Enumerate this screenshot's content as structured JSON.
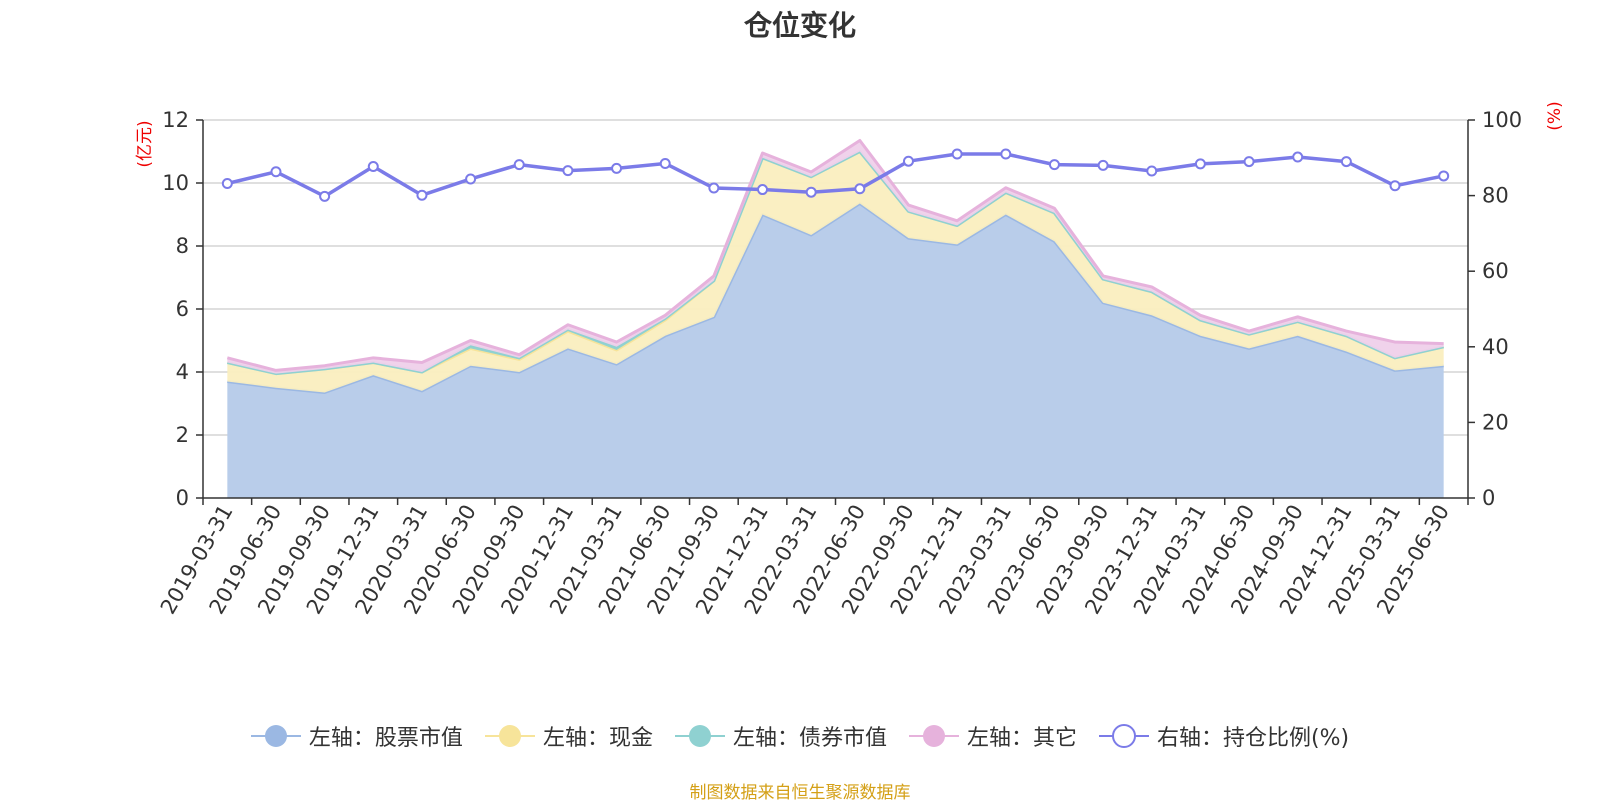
{
  "title": "仓位变化",
  "source_text": "制图数据来自恒生聚源数据库",
  "colors": {
    "title": "#333333",
    "source": "#d4a017",
    "unit": "#ee0000",
    "grid": "#cccccc",
    "axis": "#333333",
    "stock": "#9bb8e3",
    "stock_fill": "#b9cdea",
    "cash": "#f7e49a",
    "cash_fill": "#faeebf",
    "bond": "#8fd1d1",
    "other": "#e6b2dc",
    "other_fill": "#efd0ea",
    "ratio": "#7b7be8"
  },
  "chart_data": {
    "type": "area",
    "title": "仓位变化",
    "left_axis": {
      "unit": "(亿元)",
      "ylim": [
        0,
        12
      ],
      "ticks": [
        0,
        2,
        4,
        6,
        8,
        10,
        12
      ]
    },
    "right_axis": {
      "unit": "(%)",
      "ylim": [
        0,
        100
      ],
      "ticks": [
        0,
        20,
        40,
        60,
        80,
        100
      ]
    },
    "grid": true,
    "legend_position": "bottom",
    "x": [
      "2019-03-31",
      "2019-06-30",
      "2019-09-30",
      "2019-12-31",
      "2020-03-31",
      "2020-06-30",
      "2020-09-30",
      "2020-12-31",
      "2021-03-31",
      "2021-06-30",
      "2021-09-30",
      "2021-12-31",
      "2022-03-31",
      "2022-06-30",
      "2022-09-30",
      "2022-12-31",
      "2023-03-31",
      "2023-06-30",
      "2023-09-30",
      "2023-12-31",
      "2024-03-31",
      "2024-06-30",
      "2024-09-30",
      "2024-12-31",
      "2025-03-31",
      "2025-06-30"
    ],
    "series": [
      {
        "name": "左轴：股票市值",
        "axis": "left",
        "type": "area",
        "values": [
          3.7,
          3.5,
          3.35,
          3.9,
          3.4,
          4.2,
          4.0,
          4.75,
          4.25,
          5.15,
          5.75,
          9.0,
          8.35,
          9.35,
          8.25,
          8.05,
          9.0,
          8.15,
          6.2,
          5.8,
          5.15,
          4.75,
          5.15,
          4.65,
          4.05,
          4.2
        ]
      },
      {
        "name": "左轴：现金",
        "axis": "left",
        "type": "area",
        "values": [
          0.6,
          0.45,
          0.75,
          0.4,
          0.6,
          0.55,
          0.4,
          0.55,
          0.45,
          0.5,
          1.15,
          1.8,
          1.85,
          1.65,
          0.85,
          0.6,
          0.7,
          0.9,
          0.75,
          0.75,
          0.5,
          0.45,
          0.45,
          0.5,
          0.4,
          0.6
        ]
      },
      {
        "name": "左轴：债券市值",
        "axis": "left",
        "type": "area",
        "values": [
          0,
          0,
          0,
          0,
          0,
          0.1,
          0.05,
          0.05,
          0.1,
          0.05,
          0,
          0,
          0,
          0,
          0,
          0,
          0,
          0,
          0,
          0,
          0,
          0,
          0,
          0,
          0,
          0
        ]
      },
      {
        "name": "左轴：其它",
        "axis": "left",
        "type": "area",
        "values": [
          0.15,
          0.1,
          0.1,
          0.15,
          0.3,
          0.15,
          0.1,
          0.15,
          0.15,
          0.1,
          0.15,
          0.15,
          0.15,
          0.35,
          0.2,
          0.15,
          0.15,
          0.15,
          0.1,
          0.15,
          0.15,
          0.1,
          0.15,
          0.15,
          0.5,
          0.1
        ]
      },
      {
        "name": "右轴：持仓比例(%)",
        "axis": "right",
        "type": "line",
        "values": [
          83.2,
          86.3,
          79.8,
          87.7,
          80.1,
          84.4,
          88.2,
          86.6,
          87.2,
          88.5,
          82.0,
          81.6,
          80.9,
          81.8,
          89.1,
          91.0,
          91.0,
          88.2,
          88.0,
          86.5,
          88.4,
          89.0,
          90.2,
          89.0,
          82.6,
          85.2
        ]
      }
    ]
  }
}
